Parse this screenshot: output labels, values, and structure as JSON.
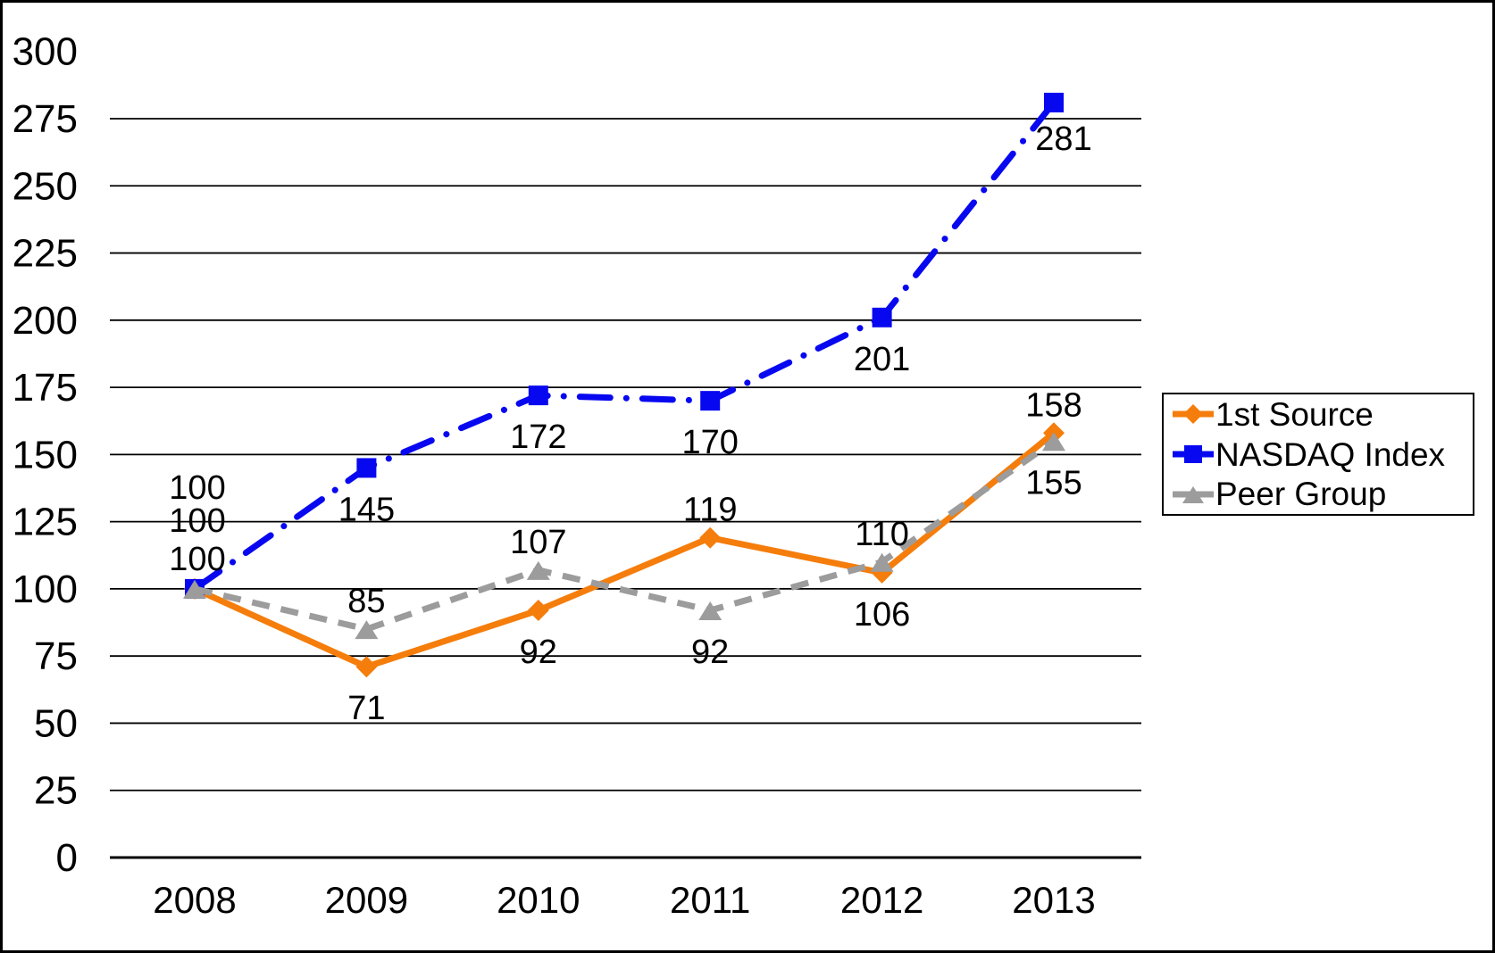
{
  "chart_data": {
    "type": "line",
    "title": "",
    "categories": [
      "2008",
      "2009",
      "2010",
      "2011",
      "2012",
      "2013"
    ],
    "series": [
      {
        "name": "1st Source",
        "color": "#F57D0B",
        "marker": "diamond",
        "line_style": "solid",
        "values": [
          100,
          71,
          92,
          119,
          106,
          158
        ],
        "label_placements": [
          "stack-bottom",
          "below",
          "below",
          "above",
          "below",
          "above"
        ]
      },
      {
        "name": "NASDAQ Index",
        "color": "#0808F0",
        "marker": "square",
        "line_style": "dash-dot",
        "values": [
          100,
          145,
          172,
          170,
          201,
          281
        ],
        "label_placements": [
          "stack-middle",
          "below",
          "below",
          "below",
          "below",
          "below-right"
        ]
      },
      {
        "name": "Peer Group",
        "color": "#9C9C9C",
        "marker": "triangle",
        "line_style": "dashed",
        "values": [
          100,
          85,
          107,
          92,
          110,
          155
        ],
        "label_placements": [
          "stack-top",
          "above",
          "above",
          "below",
          "above",
          "below"
        ]
      }
    ],
    "y_axis": {
      "min": 0,
      "max": 300,
      "step": 25,
      "tick_labels": [
        "300",
        "275",
        "250",
        "225",
        "200",
        "175",
        "150",
        "125",
        "100",
        "75",
        "50",
        "25",
        "0"
      ],
      "top_gridline_hidden": true
    },
    "x_axis": {
      "tick_labels": [
        "2008",
        "2009",
        "2010",
        "2011",
        "2012",
        "2013"
      ]
    },
    "grid": "horizontal",
    "data_labels_shown": true,
    "legend": {
      "position": "right",
      "border": true,
      "background": "#FFFFFF"
    },
    "colors": {
      "text": "#000000",
      "gridline": "#000000",
      "background": "#FFFFFF"
    }
  }
}
